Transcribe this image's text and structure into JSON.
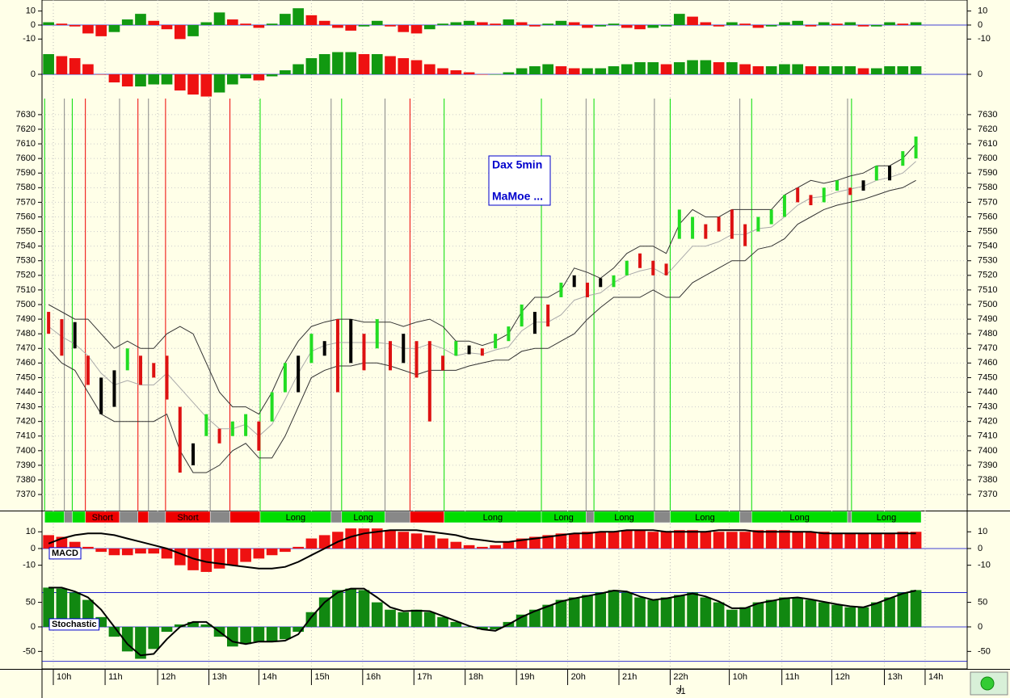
{
  "chart_data": [
    {
      "type": "bar",
      "ylim": [
        -15,
        15
      ],
      "yticks": [
        -10,
        0,
        10
      ],
      "rise_color": "#119911",
      "fall_color": "#ee1111",
      "reference_lines": [
        0
      ],
      "reference_color": "#0000cc",
      "values": [
        2,
        1,
        -1,
        -6,
        -8,
        -5,
        4,
        8,
        3,
        -3,
        -10,
        -8,
        2,
        9,
        4,
        1,
        -2,
        1,
        8,
        12,
        7,
        3,
        -2,
        -4,
        -1,
        3,
        -1,
        -5,
        -6,
        -3,
        1,
        2,
        3,
        2,
        1,
        4,
        2,
        -1,
        1,
        3,
        2,
        -2,
        -1,
        1,
        -2,
        -3,
        -2,
        -1,
        8,
        6,
        2,
        -1,
        2,
        1,
        -2,
        -1,
        2,
        3,
        -1,
        2,
        1,
        2,
        -1,
        -1,
        2,
        1,
        2
      ]
    },
    {
      "type": "bar",
      "ylim": [
        -12,
        12
      ],
      "yticks": [
        0
      ],
      "rise_color": "#119911",
      "fall_color": "#ee1111",
      "reference_lines": [
        0
      ],
      "reference_color": "#0000cc",
      "values": [
        10,
        9,
        8,
        5,
        0,
        -4,
        -6,
        -6,
        -5,
        -5,
        -8,
        -10,
        -11,
        -9,
        -5,
        -2,
        -3,
        -1,
        2,
        5,
        8,
        10,
        11,
        11,
        10,
        10,
        9,
        8,
        7,
        5,
        3,
        2,
        1,
        0,
        0,
        1,
        3,
        4,
        5,
        4,
        3,
        3,
        3,
        4,
        5,
        6,
        6,
        5,
        6,
        7,
        7,
        6,
        6,
        5,
        4,
        4,
        5,
        5,
        4,
        4,
        4,
        4,
        3,
        3,
        4,
        4,
        4
      ]
    },
    {
      "type": "range_bar",
      "ylim": [
        7359,
        7641
      ],
      "yticks": [
        7370,
        7380,
        7390,
        7400,
        7410,
        7420,
        7430,
        7440,
        7450,
        7460,
        7470,
        7480,
        7490,
        7500,
        7510,
        7520,
        7530,
        7540,
        7550,
        7560,
        7570,
        7580,
        7590,
        7600,
        7610,
        7620,
        7630
      ],
      "grid": true,
      "annotations": [
        "Dax 5min",
        "MaMoe ..."
      ],
      "palette": {
        "u": "#22dd22",
        "d": "#dd1111",
        "k": "#000000"
      },
      "high": [
        7495,
        7490,
        7488,
        7465,
        7450,
        7455,
        7470,
        7465,
        7460,
        7465,
        7430,
        7405,
        7425,
        7415,
        7420,
        7425,
        7420,
        7440,
        7460,
        7465,
        7480,
        7475,
        7490,
        7490,
        7480,
        7490,
        7475,
        7480,
        7475,
        7475,
        7465,
        7475,
        7472,
        7470,
        7480,
        7485,
        7500,
        7495,
        7500,
        7515,
        7520,
        7515,
        7518,
        7520,
        7530,
        7535,
        7530,
        7528,
        7565,
        7560,
        7555,
        7560,
        7565,
        7555,
        7560,
        7565,
        7575,
        7580,
        7575,
        7580,
        7585,
        7580,
        7585,
        7595,
        7595,
        7605,
        7615
      ],
      "low": [
        7480,
        7465,
        7470,
        7445,
        7425,
        7430,
        7455,
        7445,
        7450,
        7435,
        7385,
        7390,
        7410,
        7405,
        7410,
        7410,
        7400,
        7420,
        7440,
        7440,
        7460,
        7465,
        7440,
        7460,
        7455,
        7470,
        7455,
        7460,
        7450,
        7420,
        7455,
        7465,
        7466,
        7465,
        7470,
        7475,
        7485,
        7480,
        7485,
        7505,
        7512,
        7505,
        7512,
        7512,
        7520,
        7525,
        7520,
        7520,
        7545,
        7545,
        7545,
        7550,
        7545,
        7540,
        7550,
        7555,
        7560,
        7570,
        7568,
        7570,
        7578,
        7575,
        7578,
        7585,
        7585,
        7595,
        7600
      ],
      "bar_states": [
        "d",
        "d",
        "k",
        "d",
        "k",
        "k",
        "u",
        "d",
        "d",
        "d",
        "d",
        "k",
        "u",
        "d",
        "u",
        "u",
        "d",
        "u",
        "u",
        "k",
        "u",
        "k",
        "d",
        "k",
        "d",
        "u",
        "d",
        "k",
        "d",
        "d",
        "d",
        "u",
        "k",
        "d",
        "u",
        "u",
        "u",
        "k",
        "d",
        "u",
        "k",
        "d",
        "k",
        "u",
        "u",
        "d",
        "d",
        "d",
        "u",
        "u",
        "d",
        "d",
        "d",
        "d",
        "u",
        "u",
        "u",
        "d",
        "d",
        "u",
        "u",
        "d",
        "k",
        "u",
        "k",
        "u",
        "u"
      ],
      "series": [
        {
          "color": "#333333",
          "values": [
            7500,
            7495,
            7490,
            7490,
            7480,
            7470,
            7475,
            7470,
            7470,
            7480,
            7485,
            7480,
            7460,
            7440,
            7430,
            7430,
            7425,
            7440,
            7460,
            7475,
            7485,
            7488,
            7490,
            7490,
            7488,
            7488,
            7488,
            7485,
            7488,
            7490,
            7485,
            7475,
            7475,
            7472,
            7475,
            7480,
            7495,
            7505,
            7505,
            7510,
            7525,
            7522,
            7518,
            7525,
            7535,
            7540,
            7540,
            7535,
            7555,
            7565,
            7560,
            7560,
            7565,
            7565,
            7565,
            7565,
            7575,
            7580,
            7585,
            7583,
            7585,
            7588,
            7590,
            7595,
            7595,
            7600,
            7610
          ]
        },
        {
          "color": "#aaaaaa",
          "values": [
            7485,
            7478,
            7473,
            7465,
            7453,
            7445,
            7448,
            7445,
            7445,
            7453,
            7443,
            7433,
            7423,
            7415,
            7415,
            7418,
            7410,
            7418,
            7435,
            7453,
            7468,
            7472,
            7474,
            7474,
            7474,
            7474,
            7473,
            7470,
            7470,
            7473,
            7470,
            7465,
            7467,
            7466,
            7469,
            7471,
            7482,
            7488,
            7488,
            7493,
            7503,
            7506,
            7508,
            7515,
            7520,
            7523,
            7525,
            7520,
            7530,
            7540,
            7540,
            7543,
            7548,
            7548,
            7552,
            7553,
            7560,
            7568,
            7573,
            7574,
            7577,
            7579,
            7581,
            7585,
            7587,
            7590,
            7598
          ]
        },
        {
          "color": "#333333",
          "values": [
            7470,
            7460,
            7455,
            7440,
            7425,
            7420,
            7420,
            7420,
            7420,
            7425,
            7400,
            7385,
            7385,
            7390,
            7400,
            7405,
            7395,
            7395,
            7410,
            7430,
            7450,
            7455,
            7458,
            7458,
            7460,
            7460,
            7458,
            7455,
            7452,
            7455,
            7455,
            7455,
            7458,
            7460,
            7462,
            7462,
            7468,
            7470,
            7470,
            7475,
            7480,
            7490,
            7498,
            7505,
            7505,
            7505,
            7510,
            7505,
            7505,
            7515,
            7520,
            7525,
            7530,
            7530,
            7538,
            7540,
            7545,
            7555,
            7560,
            7565,
            7568,
            7570,
            7572,
            7575,
            7578,
            7580,
            7585
          ]
        }
      ]
    },
    {
      "type": "signal_strip",
      "palette": {
        "long": "#00dd00",
        "short": "#ee0000",
        "flat": "#888888"
      },
      "segments": [
        {
          "start": 0.2,
          "end": 1.7,
          "signal": "long"
        },
        {
          "start": 1.7,
          "end": 2.3,
          "signal": "flat"
        },
        {
          "start": 2.3,
          "end": 3.3,
          "signal": "long"
        },
        {
          "start": 3.3,
          "end": 5.9,
          "signal": "short",
          "label": "Short"
        },
        {
          "start": 5.9,
          "end": 7.3,
          "signal": "flat"
        },
        {
          "start": 7.3,
          "end": 8.1,
          "signal": "short"
        },
        {
          "start": 8.1,
          "end": 9.4,
          "signal": "flat"
        },
        {
          "start": 9.4,
          "end": 12.8,
          "signal": "short",
          "label": "Short"
        },
        {
          "start": 12.8,
          "end": 14.3,
          "signal": "flat"
        },
        {
          "start": 14.3,
          "end": 16.6,
          "signal": "short"
        },
        {
          "start": 16.6,
          "end": 22.0,
          "signal": "long",
          "label": "Long"
        },
        {
          "start": 22.0,
          "end": 22.8,
          "signal": "flat"
        },
        {
          "start": 22.8,
          "end": 26.1,
          "signal": "long",
          "label": "Long"
        },
        {
          "start": 26.1,
          "end": 28.0,
          "signal": "flat"
        },
        {
          "start": 28.0,
          "end": 30.6,
          "signal": "short"
        },
        {
          "start": 30.6,
          "end": 38.0,
          "signal": "long",
          "label": "Long"
        },
        {
          "start": 38.0,
          "end": 41.4,
          "signal": "long",
          "label": "Long"
        },
        {
          "start": 41.4,
          "end": 42.0,
          "signal": "flat"
        },
        {
          "start": 42.0,
          "end": 46.6,
          "signal": "long",
          "label": "Long"
        },
        {
          "start": 46.6,
          "end": 47.8,
          "signal": "flat"
        },
        {
          "start": 47.8,
          "end": 53.1,
          "signal": "long",
          "label": "Long"
        },
        {
          "start": 53.1,
          "end": 54.0,
          "signal": "flat"
        },
        {
          "start": 54.0,
          "end": 61.3,
          "signal": "long",
          "label": "Long"
        },
        {
          "start": 61.3,
          "end": 61.6,
          "signal": "flat"
        },
        {
          "start": 61.6,
          "end": 66.9,
          "signal": "long",
          "label": "Long"
        }
      ]
    },
    {
      "type": "bar",
      "title": "MACD",
      "ylim": [
        -15,
        14
      ],
      "yticks": [
        -10,
        0,
        10
      ],
      "color": "#ee1111",
      "reference_lines": [
        0
      ],
      "reference_color": "#0000cc",
      "values": [
        8,
        7,
        4,
        1,
        -2,
        -4,
        -4,
        -3,
        -3,
        -6,
        -10,
        -13,
        -14,
        -12,
        -10,
        -8,
        -6,
        -4,
        -2,
        1,
        6,
        8,
        10,
        12,
        12,
        12,
        11,
        10,
        9,
        8,
        6,
        4,
        2,
        1,
        2,
        4,
        6,
        7,
        8,
        9,
        9,
        10,
        10,
        10,
        11,
        11,
        10,
        10,
        11,
        11,
        10,
        10,
        10,
        10,
        11,
        11,
        11,
        10,
        10,
        10,
        9,
        9,
        9,
        9,
        9,
        10,
        10
      ],
      "line": {
        "color": "#000000",
        "values": [
          3,
          6,
          8,
          9,
          9,
          8,
          6,
          4,
          2,
          0,
          -3,
          -6,
          -8,
          -9,
          -10,
          -11,
          -12,
          -12,
          -11,
          -8,
          -4,
          0,
          4,
          7,
          9,
          10,
          11,
          11,
          11,
          10,
          9,
          8,
          6,
          5,
          4,
          4,
          5,
          6,
          7,
          8,
          9,
          9,
          10,
          10,
          11,
          11,
          11,
          10,
          10,
          10,
          10,
          11,
          11,
          11,
          10,
          10,
          10,
          10,
          10,
          9,
          9,
          9,
          9,
          9,
          9,
          9,
          9
        ]
      }
    },
    {
      "type": "bar",
      "title": "Stochastic",
      "ylim": [
        -84,
        102
      ],
      "yticks": [
        -50,
        0,
        50
      ],
      "color": "#118811",
      "reference_lines": [
        70,
        0,
        -70
      ],
      "reference_color": "#0000cc",
      "values": [
        80,
        78,
        70,
        55,
        20,
        -20,
        -50,
        -65,
        -45,
        -10,
        5,
        10,
        5,
        -20,
        -40,
        -35,
        -30,
        -30,
        -25,
        -10,
        30,
        60,
        75,
        78,
        75,
        50,
        35,
        30,
        35,
        30,
        20,
        10,
        0,
        -5,
        -5,
        10,
        25,
        35,
        45,
        55,
        60,
        65,
        70,
        75,
        70,
        60,
        55,
        60,
        65,
        70,
        60,
        50,
        35,
        40,
        50,
        55,
        60,
        60,
        55,
        50,
        45,
        40,
        40,
        50,
        60,
        70,
        75
      ],
      "line": {
        "color": "#000000",
        "values": [
          80,
          80,
          72,
          60,
          35,
          0,
          -35,
          -58,
          -55,
          -25,
          0,
          10,
          10,
          -10,
          -30,
          -35,
          -30,
          -30,
          -28,
          -15,
          20,
          50,
          70,
          78,
          78,
          60,
          40,
          32,
          33,
          32,
          22,
          12,
          2,
          -5,
          -8,
          5,
          20,
          32,
          42,
          52,
          58,
          63,
          68,
          74,
          72,
          62,
          55,
          58,
          63,
          68,
          62,
          52,
          38,
          38,
          48,
          53,
          58,
          60,
          56,
          51,
          46,
          42,
          40,
          48,
          58,
          68,
          74
        ]
      }
    }
  ],
  "x_axis": {
    "xlim": [
      0,
      70.4
    ],
    "xticks": [
      {
        "value": 0.86,
        "label": "10h"
      },
      {
        "value": 4.8,
        "label": "11h"
      },
      {
        "value": 8.8,
        "label": "12h"
      },
      {
        "value": 12.7,
        "label": "13h"
      },
      {
        "value": 16.5,
        "label": "14h"
      },
      {
        "value": 20.5,
        "label": "15h"
      },
      {
        "value": 24.4,
        "label": "16h"
      },
      {
        "value": 28.3,
        "label": "17h"
      },
      {
        "value": 32.2,
        "label": "18h"
      },
      {
        "value": 36.1,
        "label": "19h"
      },
      {
        "value": 40.0,
        "label": "20h"
      },
      {
        "value": 43.9,
        "label": "21h"
      },
      {
        "value": 47.8,
        "label": "22h"
      },
      {
        "value": 52.3,
        "label": "10h"
      },
      {
        "value": 56.3,
        "label": "11h"
      },
      {
        "value": 60.1,
        "label": "12h"
      },
      {
        "value": 64.1,
        "label": "13h"
      },
      {
        "value": 67.2,
        "label": "14h"
      }
    ],
    "day_ticks": [
      {
        "value": 48.6,
        "label": "31"
      }
    ]
  }
}
